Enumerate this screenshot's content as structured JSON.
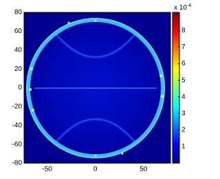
{
  "chart_data": {
    "type": "heatmap",
    "colormap": "jet",
    "xlim": [
      -74,
      78
    ],
    "xticks": [
      -50,
      0,
      50
    ],
    "ylim": [
      -80,
      80
    ],
    "yticks": [
      -80,
      -60,
      -40,
      -20,
      0,
      20,
      40,
      60,
      80
    ],
    "clim": [
      0,
      9.1
    ],
    "cticks": [
      1,
      2,
      3,
      4,
      5,
      6,
      7,
      8
    ],
    "colorbar_label": "x 10",
    "colorbar_exponent": "-4"
  }
}
